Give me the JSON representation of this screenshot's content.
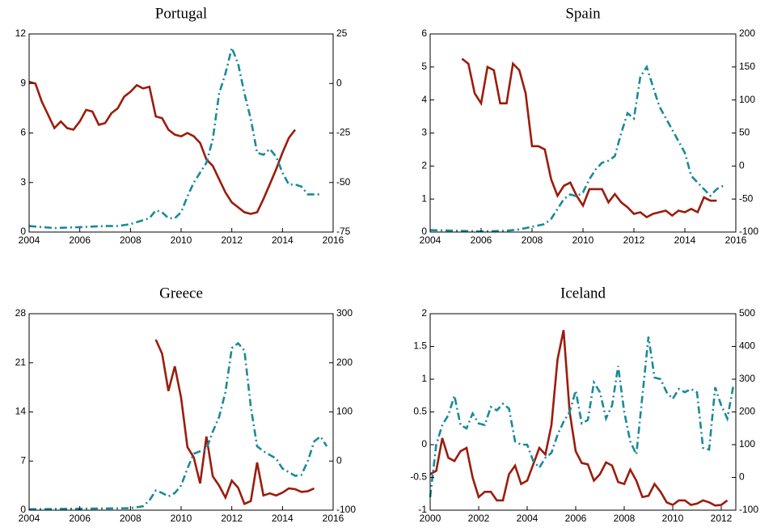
{
  "chart_data": [
    {
      "type": "line",
      "title": "Portugal",
      "xlim": [
        2004,
        2016
      ],
      "xticks": [
        2004,
        2006,
        2008,
        2010,
        2012,
        2014,
        2016
      ],
      "ylim": [
        0,
        12
      ],
      "yticks": [
        0,
        3,
        6,
        9,
        12
      ],
      "y2lim": [
        -75,
        25
      ],
      "y2ticks": [
        -75,
        -50,
        -25,
        0,
        25
      ],
      "series": [
        {
          "color": "#9b1c0c",
          "axis": "y",
          "x": [
            2004,
            2004.25,
            2004.5,
            2004.75,
            2005,
            2005.25,
            2005.5,
            2005.75,
            2006,
            2006.25,
            2006.5,
            2006.75,
            2007,
            2007.25,
            2007.5,
            2007.75,
            2008,
            2008.25,
            2008.5,
            2008.75,
            2009,
            2009.25,
            2009.5,
            2009.75,
            2010,
            2010.25,
            2010.5,
            2010.75,
            2011,
            2011.25,
            2011.5,
            2011.75,
            2012,
            2012.25,
            2012.5,
            2012.75,
            2013,
            2013.25,
            2013.5,
            2013.75,
            2014,
            2014.25,
            2014.5
          ],
          "values": [
            9.1,
            9.0,
            7.9,
            7.1,
            6.3,
            6.7,
            6.3,
            6.2,
            6.7,
            7.4,
            7.3,
            6.5,
            6.6,
            7.2,
            7.5,
            8.2,
            8.5,
            8.9,
            8.7,
            8.8,
            7.0,
            6.9,
            6.2,
            5.9,
            5.8,
            6.0,
            5.8,
            5.4,
            4.4,
            4.0,
            3.2,
            2.4,
            1.8,
            1.5,
            1.2,
            1.1,
            1.2,
            2.0,
            2.9,
            3.8,
            4.8,
            5.7,
            6.2
          ]
        },
        {
          "color": "#1a8a9a",
          "axis": "y2",
          "x": [
            2004,
            2005,
            2006,
            2007,
            2007.5,
            2008,
            2008.5,
            2008.75,
            2009,
            2009.25,
            2009.5,
            2009.75,
            2010,
            2010.25,
            2010.5,
            2010.75,
            2011,
            2011.25,
            2011.5,
            2011.75,
            2012,
            2012.25,
            2012.5,
            2012.75,
            2013,
            2013.25,
            2013.5,
            2013.75,
            2014,
            2014.25,
            2014.5,
            2014.75,
            2015,
            2015.25,
            2015.5
          ],
          "values": [
            -72,
            -73,
            -72.5,
            -72,
            -72,
            -71,
            -69,
            -68,
            -64,
            -65,
            -68,
            -68,
            -65,
            -57,
            -50,
            -45,
            -40,
            -28,
            -5,
            5,
            18,
            10,
            -5,
            -18,
            -35,
            -36,
            -33,
            -37,
            -45,
            -51,
            -51,
            -52,
            -56,
            -56,
            -56
          ]
        }
      ]
    },
    {
      "type": "line",
      "title": "Spain",
      "xlim": [
        2004,
        2016
      ],
      "xticks": [
        2004,
        2006,
        2008,
        2010,
        2012,
        2014,
        2016
      ],
      "ylim": [
        0,
        6
      ],
      "yticks": [
        0,
        1,
        2,
        3,
        4,
        5,
        6
      ],
      "y2lim": [
        -100,
        200
      ],
      "y2ticks": [
        -100,
        -50,
        0,
        50,
        100,
        150,
        200
      ],
      "series": [
        {
          "color": "#9b1c0c",
          "axis": "y",
          "x": [
            2005.25,
            2005.5,
            2005.75,
            2006,
            2006.25,
            2006.5,
            2006.75,
            2007,
            2007.25,
            2007.5,
            2007.75,
            2008,
            2008.25,
            2008.5,
            2008.75,
            2009,
            2009.25,
            2009.5,
            2009.75,
            2010,
            2010.25,
            2010.5,
            2010.75,
            2011,
            2011.25,
            2011.5,
            2011.75,
            2012,
            2012.25,
            2012.5,
            2012.75,
            2013,
            2013.25,
            2013.5,
            2013.75,
            2014,
            2014.25,
            2014.5,
            2014.75,
            2015,
            2015.25
          ],
          "values": [
            5.25,
            5.1,
            4.2,
            3.9,
            5.0,
            4.9,
            3.9,
            3.9,
            5.1,
            4.9,
            4.2,
            2.6,
            2.6,
            2.5,
            1.6,
            1.1,
            1.4,
            1.5,
            1.1,
            0.8,
            1.3,
            1.3,
            1.3,
            0.9,
            1.15,
            0.9,
            0.75,
            0.55,
            0.6,
            0.45,
            0.55,
            0.6,
            0.65,
            0.5,
            0.65,
            0.6,
            0.7,
            0.6,
            1.05,
            0.95,
            0.95
          ]
        },
        {
          "color": "#1a8a9a",
          "axis": "y2",
          "x": [
            2004,
            2005,
            2006,
            2007,
            2007.5,
            2008,
            2008.5,
            2008.75,
            2009,
            2009.25,
            2009.5,
            2009.75,
            2010,
            2010.25,
            2010.5,
            2010.75,
            2011,
            2011.25,
            2011.5,
            2011.75,
            2012,
            2012.25,
            2012.5,
            2012.75,
            2013,
            2013.5,
            2014,
            2014.25,
            2014.75,
            2015,
            2015.25,
            2015.5
          ],
          "values": [
            -97,
            -98,
            -99,
            -98,
            -96,
            -92,
            -88,
            -80,
            -65,
            -50,
            -43,
            -46,
            -40,
            -20,
            -5,
            5,
            8,
            15,
            50,
            80,
            72,
            135,
            150,
            120,
            90,
            55,
            20,
            -15,
            -35,
            -45,
            -35,
            -30
          ]
        }
      ]
    },
    {
      "type": "line",
      "title": "Greece",
      "xlim": [
        2004,
        2016
      ],
      "xticks": [
        2004,
        2006,
        2008,
        2010,
        2012,
        2014,
        2016
      ],
      "ylim": [
        0,
        28
      ],
      "yticks": [
        0,
        7,
        14,
        21,
        28
      ],
      "y2lim": [
        -100,
        300
      ],
      "y2ticks": [
        -100,
        0,
        100,
        200,
        300
      ],
      "series": [
        {
          "color": "#9b1c0c",
          "axis": "y",
          "x": [
            2009,
            2009.25,
            2009.5,
            2009.75,
            2010,
            2010.25,
            2010.5,
            2010.75,
            2011,
            2011.25,
            2011.5,
            2011.75,
            2012,
            2012.25,
            2012.5,
            2012.75,
            2013,
            2013.25,
            2013.5,
            2013.75,
            2014,
            2014.25,
            2014.5,
            2014.75,
            2015,
            2015.25
          ],
          "values": [
            24.3,
            22.3,
            17,
            20.5,
            16,
            9,
            7.5,
            3.8,
            10.5,
            4.8,
            3.5,
            1.8,
            4.2,
            3.2,
            0.9,
            1.3,
            6.8,
            2.1,
            2.4,
            2.1,
            2.5,
            3.1,
            3.0,
            2.6,
            2.7,
            3.1
          ]
        },
        {
          "color": "#1a8a9a",
          "axis": "y2",
          "x": [
            2004,
            2006,
            2008,
            2008.5,
            2008.75,
            2009,
            2009.25,
            2009.5,
            2009.75,
            2010,
            2010.25,
            2010.5,
            2010.75,
            2011,
            2011.25,
            2011.5,
            2011.75,
            2012,
            2012.25,
            2012.5,
            2012.75,
            2013,
            2013.25,
            2013.75,
            2014,
            2014.5,
            2014.75,
            2015,
            2015.25,
            2015.5,
            2015.75
          ],
          "values": [
            -98,
            -97,
            -96,
            -92,
            -80,
            -60,
            -65,
            -72,
            -65,
            -50,
            -15,
            15,
            20,
            25,
            60,
            90,
            140,
            230,
            240,
            225,
            110,
            30,
            20,
            5,
            -15,
            -30,
            -28,
            0,
            40,
            50,
            30
          ]
        }
      ]
    },
    {
      "type": "line",
      "title": "Iceland",
      "xlim": [
        2000,
        2012.6
      ],
      "xticks": [
        2000,
        2002,
        2004,
        2006,
        2008,
        2010,
        2012
      ],
      "ylim": [
        -1,
        2
      ],
      "yticks": [
        -1,
        -0.5,
        0,
        0.5,
        1,
        1.5,
        2
      ],
      "y2lim": [
        -100,
        500
      ],
      "y2ticks": [
        -100,
        0,
        100,
        200,
        300,
        400,
        500
      ],
      "series": [
        {
          "color": "#9b1c0c",
          "axis": "y",
          "x": [
            2000,
            2000.25,
            2000.5,
            2000.75,
            2001,
            2001.25,
            2001.5,
            2001.75,
            2002,
            2002.25,
            2002.5,
            2002.75,
            2003,
            2003.25,
            2003.5,
            2003.75,
            2004,
            2004.25,
            2004.5,
            2004.75,
            2005,
            2005.25,
            2005.5,
            2005.75,
            2006,
            2006.25,
            2006.5,
            2006.75,
            2007,
            2007.25,
            2007.5,
            2007.75,
            2008,
            2008.25,
            2008.5,
            2008.75,
            2009,
            2009.25,
            2009.5,
            2009.75,
            2010,
            2010.25,
            2010.5,
            2010.75,
            2011,
            2011.25,
            2011.5,
            2011.75,
            2012,
            2012.25
          ],
          "values": [
            -0.45,
            -0.4,
            0.1,
            -0.2,
            -0.25,
            -0.1,
            -0.05,
            -0.5,
            -0.8,
            -0.72,
            -0.72,
            -0.85,
            -0.85,
            -0.45,
            -0.32,
            -0.6,
            -0.55,
            -0.3,
            -0.05,
            -0.15,
            0.3,
            1.3,
            1.75,
            0.5,
            -0.1,
            -0.28,
            -0.3,
            -0.55,
            -0.45,
            -0.27,
            -0.32,
            -0.57,
            -0.6,
            -0.38,
            -0.55,
            -0.8,
            -0.78,
            -0.6,
            -0.72,
            -0.88,
            -0.92,
            -0.85,
            -0.85,
            -0.92,
            -0.9,
            -0.85,
            -0.88,
            -0.93,
            -0.92,
            -0.85
          ]
        },
        {
          "color": "#1a8a9a",
          "axis": "y2",
          "x": [
            2000,
            2000.25,
            2000.5,
            2000.75,
            2001,
            2001.25,
            2001.5,
            2001.75,
            2002,
            2002.25,
            2002.5,
            2002.75,
            2003,
            2003.25,
            2003.5,
            2003.75,
            2004,
            2004.25,
            2004.5,
            2004.75,
            2005,
            2005.25,
            2005.5,
            2005.75,
            2006,
            2006.25,
            2006.5,
            2006.75,
            2007,
            2007.25,
            2007.5,
            2007.75,
            2008,
            2008.25,
            2008.5,
            2008.75,
            2009,
            2009.25,
            2009.5,
            2009.75,
            2010,
            2010.25,
            2010.5,
            2010.75,
            2011,
            2011.25,
            2011.5,
            2011.75,
            2012,
            2012.25,
            2012.5
          ],
          "values": [
            -60,
            100,
            160,
            190,
            250,
            160,
            150,
            195,
            165,
            160,
            215,
            205,
            225,
            210,
            110,
            100,
            100,
            50,
            30,
            60,
            75,
            130,
            170,
            200,
            265,
            165,
            175,
            290,
            260,
            180,
            220,
            340,
            200,
            110,
            70,
            250,
            430,
            305,
            300,
            260,
            240,
            270,
            260,
            270,
            260,
            90,
            85,
            275,
            220,
            180,
            280
          ]
        }
      ]
    }
  ]
}
